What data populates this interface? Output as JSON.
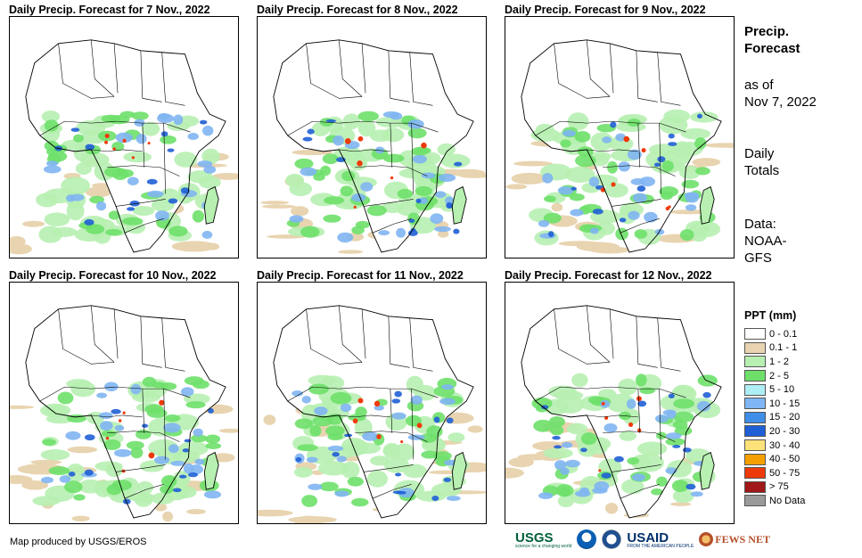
{
  "panels": [
    {
      "title": "Daily Precip. Forecast for 7 Nov., 2022"
    },
    {
      "title": "Daily Precip. Forecast for 8 Nov., 2022"
    },
    {
      "title": "Daily Precip. Forecast for 9 Nov., 2022"
    },
    {
      "title": "Daily Precip. Forecast for 10 Nov., 2022"
    },
    {
      "title": "Daily Precip. Forecast for 11 Nov., 2022"
    },
    {
      "title": "Daily Precip. Forecast for 12 Nov., 2022"
    }
  ],
  "side": {
    "title_line1": "Precip.",
    "title_line2": "Forecast",
    "asof_line1": "as of",
    "asof_line2": "Nov 7, 2022",
    "totals_line1": "Daily",
    "totals_line2": "Totals",
    "data_line1": "Data:",
    "data_line2": "NOAA-",
    "data_line3": "GFS"
  },
  "legend": {
    "title": "PPT (mm)",
    "items": [
      {
        "label": "0 - 0.1",
        "color": "#ffffff"
      },
      {
        "label": "0.1 - 1",
        "color": "#e8d4b0"
      },
      {
        "label": "1 - 2",
        "color": "#b7f0b1"
      },
      {
        "label": "2 - 5",
        "color": "#6ee06a"
      },
      {
        "label": "5 - 10",
        "color": "#aeeef5"
      },
      {
        "label": "10 - 15",
        "color": "#7fb5f2"
      },
      {
        "label": "15 - 20",
        "color": "#3f8ee8"
      },
      {
        "label": "20 - 30",
        "color": "#1f5fd6"
      },
      {
        "label": "30 - 40",
        "color": "#fde27a"
      },
      {
        "label": "40 - 50",
        "color": "#f5a000"
      },
      {
        "label": "50 - 75",
        "color": "#ee3a0a"
      },
      {
        "label": "> 75",
        "color": "#a01818"
      },
      {
        "label": "No Data",
        "color": "#9a9a9a"
      }
    ]
  },
  "credit": "Map produced by USGS/EROS",
  "logos": {
    "usgs": "USGS",
    "usgs_tagline": "science for a changing world",
    "usaid": "USAID",
    "usaid_tagline": "FROM THE AMERICAN PEOPLE",
    "fews": "FEWS NET"
  }
}
